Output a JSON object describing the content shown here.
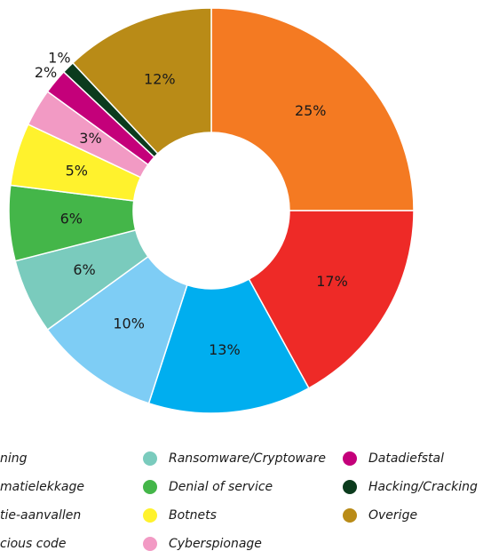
{
  "chart_data": {
    "type": "donut",
    "categories": [
      "ning",
      "matielekkage",
      "tie-aanvallen",
      "cious code",
      "Ransomware/Cryptoware",
      "Denial of service",
      "Botnets",
      "Cyberspionage",
      "Datadiefstal",
      "Hacking/Cracking",
      "Overige"
    ],
    "values": [
      25,
      17,
      13,
      10,
      6,
      6,
      5,
      3,
      2,
      1,
      12
    ],
    "value_labels": [
      "25%",
      "17%",
      "13%",
      "10%",
      "6%",
      "6%",
      "5%",
      "3%",
      "2%",
      "1%",
      "12%"
    ],
    "colors": [
      "#f47a22",
      "#ee2a27",
      "#00aeef",
      "#7ecdf5",
      "#7acbbd",
      "#44b649",
      "#fff22d",
      "#f29ac4",
      "#c4007a",
      "#0b3b1d",
      "#b98b17"
    ]
  }
}
